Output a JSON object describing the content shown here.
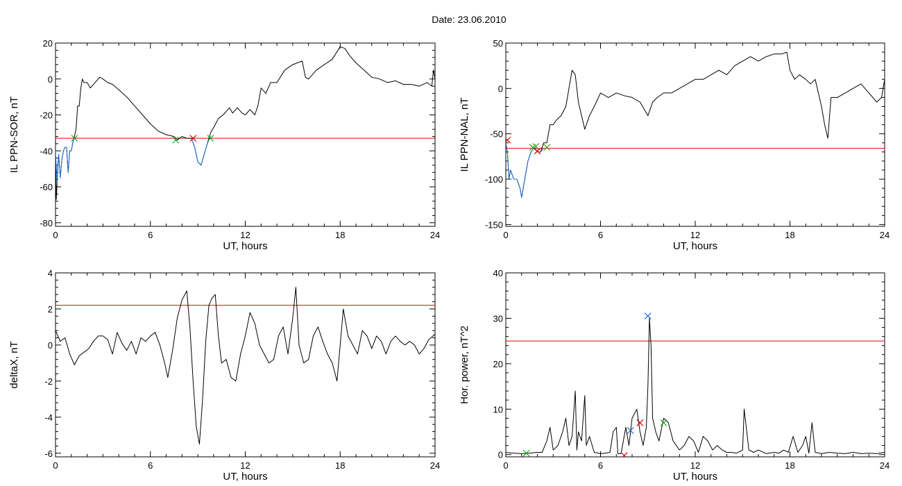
{
  "page": {
    "title": "Date:  23.06.2010"
  },
  "chart_data": [
    {
      "id": "panel-1",
      "type": "line",
      "title": "",
      "xlabel": "UT, hours",
      "ylabel": "IL PPN-SOR, nT",
      "xlim": [
        0,
        24
      ],
      "ylim": [
        -82,
        20
      ],
      "xticks": [
        0,
        6,
        12,
        18,
        24
      ],
      "yticks": [
        -80,
        -60,
        -40,
        -20,
        0,
        20
      ],
      "series": [
        {
          "color": "#000000",
          "x": [
            0,
            0.05,
            0.1,
            0.15,
            0.2,
            0.3,
            0.4,
            0.5,
            0.6,
            0.7,
            0.8,
            0.9,
            1.0,
            1.1,
            1.2,
            1.3,
            1.4,
            1.5,
            1.6,
            1.7,
            1.8,
            2.0,
            2.2,
            2.5,
            2.8,
            3.0,
            3.3,
            3.6,
            4.0,
            4.5,
            5.0,
            5.5,
            6.0,
            6.5,
            7.0,
            7.5,
            7.7,
            8.0,
            8.3,
            8.6,
            8.8,
            9.0,
            9.2,
            9.4,
            9.6,
            9.8,
            10.0,
            10.3,
            10.6,
            11.0,
            11.2,
            11.5,
            11.8,
            12.0,
            12.3,
            12.6,
            12.8,
            13.0,
            13.3,
            13.6,
            14.0,
            14.5,
            15.0,
            15.3,
            15.6,
            15.8,
            16.0,
            16.5,
            17.0,
            17.5,
            18.0,
            18.3,
            18.6,
            19.0,
            19.5,
            20.0,
            20.5,
            21.0,
            21.5,
            22.0,
            22.5,
            23.0,
            23.5,
            23.8,
            23.9,
            24.0
          ],
          "y": [
            -40,
            -67,
            -58,
            -48,
            -42,
            -55,
            -45,
            -40,
            -38,
            -38,
            -52,
            -40,
            -40,
            -35,
            -32,
            -28,
            -15,
            -15,
            -5,
            0,
            -2,
            -2,
            -5,
            -2,
            1,
            0,
            -2,
            -3,
            -6,
            -10,
            -15,
            -20,
            -25,
            -29,
            -31,
            -32,
            -34,
            -32,
            -33,
            -33,
            -38,
            -46,
            -48,
            -42,
            -36,
            -30,
            -27,
            -22,
            -20,
            -16,
            -19,
            -16,
            -19,
            -20,
            -17,
            -20,
            -15,
            -5,
            -8,
            -2,
            -2,
            5,
            8,
            9,
            10,
            1,
            0,
            5,
            8,
            11,
            18,
            17,
            13,
            9,
            5,
            1,
            0,
            -2,
            -1,
            -3,
            -3,
            -4,
            -2,
            -4,
            5,
            0
          ]
        },
        {
          "color": "#1f6fd6",
          "x": [
            0,
            0.1,
            0.2,
            0.3,
            0.4,
            0.5,
            0.6,
            0.7,
            0.8,
            0.9,
            1.0,
            1.1,
            1.2
          ],
          "y": [
            -40,
            -58,
            -42,
            -55,
            -45,
            -40,
            -38,
            -38,
            -52,
            -40,
            -40,
            -35,
            -33
          ]
        },
        {
          "color": "#1f6fd6",
          "x": [
            8.6,
            8.8,
            9.0,
            9.2,
            9.4,
            9.6,
            9.8
          ],
          "y": [
            -33,
            -38,
            -46,
            -48,
            -42,
            -36,
            -32
          ]
        }
      ],
      "threshold": {
        "y": -33,
        "color": "#e00000"
      },
      "markers": [
        {
          "x": 1.2,
          "y": -33,
          "color": "#22aa22"
        },
        {
          "x": 7.6,
          "y": -34,
          "color": "#22aa22"
        },
        {
          "x": 8.7,
          "y": -33,
          "color": "#e00000"
        },
        {
          "x": 9.8,
          "y": -33,
          "color": "#22aa22"
        }
      ]
    },
    {
      "id": "panel-2",
      "type": "line",
      "title": "",
      "xlabel": "UT, hours",
      "ylabel": "IL PPN-NAL, nT",
      "xlim": [
        0,
        24
      ],
      "ylim": [
        -152,
        50
      ],
      "xticks": [
        0,
        6,
        12,
        18,
        24
      ],
      "yticks": [
        -150,
        -100,
        -50,
        0,
        50
      ],
      "series": [
        {
          "color": "#000000",
          "x": [
            0,
            0.1,
            0.2,
            0.3,
            0.5,
            0.7,
            0.9,
            1.0,
            1.2,
            1.4,
            1.6,
            1.8,
            2.0,
            2.2,
            2.4,
            2.6,
            2.8,
            3.0,
            3.2,
            3.5,
            3.8,
            4.0,
            4.2,
            4.4,
            4.6,
            4.8,
            5.0,
            5.3,
            5.6,
            6.0,
            6.5,
            7.0,
            7.5,
            8.0,
            8.5,
            9.0,
            9.3,
            9.6,
            10.0,
            10.5,
            11.0,
            11.5,
            12.0,
            12.5,
            13.0,
            13.5,
            14.0,
            14.5,
            15.0,
            15.5,
            16.0,
            16.5,
            17.0,
            17.5,
            17.8,
            18.0,
            18.3,
            18.6,
            19.0,
            19.3,
            19.6,
            20.0,
            20.2,
            20.4,
            20.6,
            21.0,
            21.5,
            22.0,
            22.5,
            23.0,
            23.5,
            23.8,
            24.0
          ],
          "y": [
            -60,
            -70,
            -100,
            -90,
            -100,
            -100,
            -110,
            -120,
            -100,
            -80,
            -70,
            -65,
            -70,
            -70,
            -60,
            -60,
            -40,
            -40,
            -35,
            -30,
            -20,
            0,
            20,
            15,
            -15,
            -30,
            -45,
            -30,
            -20,
            -5,
            -10,
            -5,
            -8,
            -10,
            -15,
            -30,
            -15,
            -10,
            -5,
            -5,
            0,
            5,
            10,
            10,
            15,
            20,
            15,
            25,
            30,
            35,
            30,
            35,
            38,
            38,
            40,
            20,
            10,
            15,
            10,
            5,
            10,
            -20,
            -40,
            -55,
            -10,
            -10,
            -5,
            0,
            5,
            -5,
            -15,
            -10,
            10
          ]
        },
        {
          "color": "#1f6fd6",
          "x": [
            0,
            0.1,
            0.2,
            0.3,
            0.5,
            0.7,
            0.9,
            1.0,
            1.2,
            1.4,
            1.6,
            1.8,
            2.0,
            2.2,
            2.4
          ],
          "y": [
            -60,
            -70,
            -100,
            -90,
            -100,
            -100,
            -110,
            -120,
            -100,
            -80,
            -70,
            -65,
            -70,
            -70,
            -66
          ]
        }
      ],
      "threshold": {
        "y": -66,
        "color": "#e00000"
      },
      "markers": [
        {
          "x": 0.1,
          "y": -57,
          "color": "#e00000"
        },
        {
          "x": 1.7,
          "y": -65,
          "color": "#22aa22"
        },
        {
          "x": 1.9,
          "y": -64,
          "color": "#22aa22"
        },
        {
          "x": 2.0,
          "y": -69,
          "color": "#e00000"
        },
        {
          "x": 2.6,
          "y": -65,
          "color": "#22aa22"
        }
      ]
    },
    {
      "id": "panel-3",
      "type": "line",
      "title": "",
      "xlabel": "UT, hours",
      "ylabel": "deltaX, nT",
      "xlim": [
        0,
        24
      ],
      "ylim": [
        -6.2,
        4
      ],
      "xticks": [
        0,
        6,
        12,
        18,
        24
      ],
      "yticks": [
        -6,
        -4,
        -2,
        0,
        2,
        4
      ],
      "series": [
        {
          "color": "#000000",
          "x": [
            0,
            0.3,
            0.6,
            0.9,
            1.2,
            1.5,
            1.8,
            2.1,
            2.4,
            2.7,
            3.0,
            3.3,
            3.6,
            3.9,
            4.2,
            4.5,
            4.8,
            5.1,
            5.4,
            5.7,
            6.0,
            6.3,
            6.6,
            6.9,
            7.1,
            7.4,
            7.7,
            8.0,
            8.3,
            8.5,
            8.7,
            8.9,
            9.1,
            9.3,
            9.5,
            9.7,
            9.9,
            10.1,
            10.3,
            10.5,
            10.8,
            11.1,
            11.4,
            11.7,
            12.0,
            12.3,
            12.6,
            12.9,
            13.2,
            13.5,
            13.8,
            14.1,
            14.4,
            14.7,
            15.0,
            15.2,
            15.4,
            15.7,
            16.0,
            16.3,
            16.6,
            16.9,
            17.2,
            17.5,
            17.8,
            18.0,
            18.2,
            18.5,
            18.8,
            19.1,
            19.4,
            19.7,
            20.0,
            20.3,
            20.6,
            20.9,
            21.2,
            21.5,
            21.8,
            22.1,
            22.4,
            22.7,
            23.0,
            23.3,
            23.6,
            24.0
          ],
          "y": [
            0.8,
            0.2,
            0.4,
            -0.5,
            -1.1,
            -0.6,
            -0.4,
            -0.2,
            0.2,
            0.5,
            0.5,
            0.3,
            -0.5,
            0.7,
            0.1,
            -0.3,
            0.2,
            -0.5,
            0.4,
            0.2,
            0.5,
            0.7,
            0,
            -1.0,
            -1.8,
            -0.3,
            1.5,
            2.5,
            3.0,
            1.0,
            -2.0,
            -4.5,
            -5.5,
            -3.0,
            0.2,
            2.2,
            2.6,
            2.8,
            0.5,
            -1.0,
            -0.8,
            -1.8,
            -2.0,
            -0.5,
            0.5,
            1.8,
            1.2,
            0,
            -0.5,
            -1.0,
            -0.8,
            0.5,
            1.0,
            -0.5,
            1.5,
            3.2,
            0,
            -1.0,
            -0.8,
            0.5,
            1.0,
            0.2,
            -0.5,
            -1.0,
            -2.0,
            0,
            2.0,
            0.5,
            0,
            -0.5,
            0.8,
            0.5,
            -0.2,
            0.5,
            0.2,
            -0.5,
            0.2,
            0.5,
            0.2,
            0,
            0.2,
            0,
            -0.5,
            -0.2,
            0.3,
            0.6
          ]
        }
      ],
      "threshold": {
        "y": 2.2,
        "color": "#e00000"
      },
      "markers": []
    },
    {
      "id": "panel-4",
      "type": "line",
      "title": "",
      "xlabel": "UT, hours",
      "ylabel": "Hor. power, nT^2",
      "xlim": [
        0,
        24
      ],
      "ylim": [
        -0.5,
        40
      ],
      "xticks": [
        0,
        6,
        12,
        18,
        24
      ],
      "yticks": [
        0,
        10,
        20,
        30,
        40
      ],
      "series": [
        {
          "color": "#000000",
          "x": [
            0,
            0.5,
            1.0,
            1.5,
            2.0,
            2.3,
            2.6,
            2.8,
            3.0,
            3.3,
            3.6,
            3.8,
            4.0,
            4.2,
            4.4,
            4.5,
            4.6,
            4.8,
            5.0,
            5.1,
            5.3,
            5.6,
            6.0,
            6.3,
            6.6,
            6.8,
            7.0,
            7.1,
            7.3,
            7.6,
            7.8,
            8.0,
            8.3,
            8.5,
            8.7,
            8.9,
            9.0,
            9.1,
            9.2,
            9.3,
            9.5,
            9.7,
            10.0,
            10.3,
            10.6,
            11.0,
            11.3,
            11.6,
            11.9,
            12.2,
            12.5,
            12.8,
            13.1,
            13.4,
            13.7,
            14.0,
            14.3,
            14.6,
            15.0,
            15.1,
            15.2,
            15.4,
            15.7,
            16.0,
            16.5,
            17.0,
            17.3,
            17.6,
            17.9,
            18.2,
            18.5,
            18.8,
            19.0,
            19.2,
            19.4,
            19.6,
            20.0,
            20.5,
            21.0,
            21.5,
            22.0,
            22.5,
            23.0,
            23.5,
            24.0
          ],
          "y": [
            0.5,
            0.3,
            0.2,
            0.3,
            0.5,
            0.5,
            3.0,
            6.0,
            1.0,
            2.0,
            5.0,
            8.0,
            2.0,
            4.0,
            14.0,
            1.0,
            5.0,
            3.0,
            13.0,
            2.0,
            4.0,
            0.5,
            0.2,
            0.3,
            0.5,
            5.0,
            6.0,
            0.2,
            0.2,
            6.0,
            2.0,
            8.0,
            10.0,
            5.0,
            2.0,
            6.0,
            15.0,
            30.0,
            24.0,
            8.0,
            5.0,
            3.0,
            8.0,
            7.0,
            3.0,
            1.0,
            2.0,
            4.0,
            3.0,
            0.5,
            4.0,
            3.0,
            1.0,
            2.0,
            1.0,
            0.5,
            0.5,
            0.3,
            1.0,
            10.0,
            7.0,
            1.0,
            0.5,
            1.0,
            0.2,
            0.5,
            0.3,
            1.0,
            0.5,
            4.0,
            0.5,
            2.0,
            4.0,
            0.3,
            7.0,
            0.5,
            0.2,
            0.5,
            0.3,
            0.2,
            0.5,
            0.2,
            0.3,
            0.2,
            0.5
          ]
        }
      ],
      "threshold": {
        "y": 25,
        "color": "#e00000"
      },
      "markers": [
        {
          "x": 1.3,
          "y": 0.3,
          "color": "#22aa22"
        },
        {
          "x": 7.5,
          "y": -0.2,
          "color": "#e00000"
        },
        {
          "x": 7.9,
          "y": 5.3,
          "color": "#1f6fd6"
        },
        {
          "x": 8.5,
          "y": 7.0,
          "color": "#e00000"
        },
        {
          "x": 9.0,
          "y": 30.5,
          "color": "#1f6fd6"
        },
        {
          "x": 10.0,
          "y": 7.0,
          "color": "#22aa22"
        }
      ]
    }
  ]
}
